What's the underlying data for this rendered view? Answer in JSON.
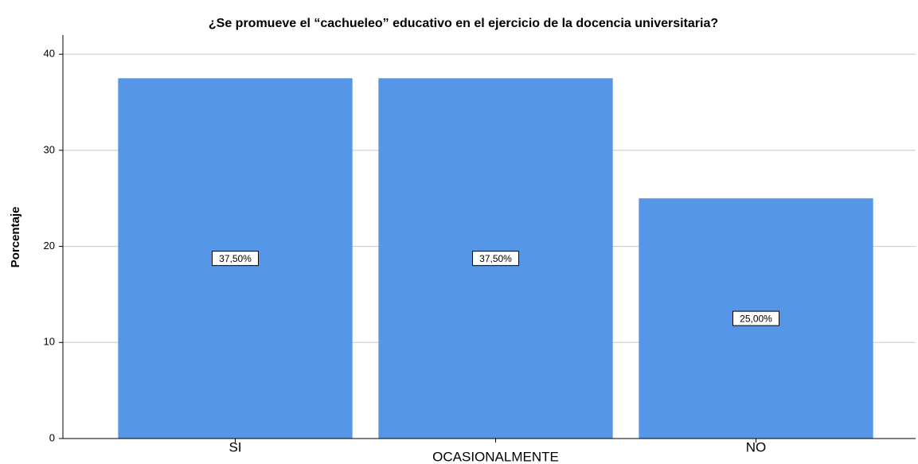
{
  "chart_data": {
    "type": "bar",
    "title": "¿Se promueve el “cachueleo” educativo en el ejercicio de la docencia universitaria?",
    "y_label": "Porcentaje",
    "categories": [
      "SI",
      "OCASIONALMENTE",
      "NO"
    ],
    "values": [
      37.5,
      37.5,
      25
    ],
    "value_labels": [
      "37,50%",
      "37,50%",
      "25,00%"
    ],
    "color": "#5596e6",
    "ylim": [
      0,
      42
    ],
    "yticks": [
      0,
      10,
      20,
      30,
      40
    ],
    "grid": true
  }
}
